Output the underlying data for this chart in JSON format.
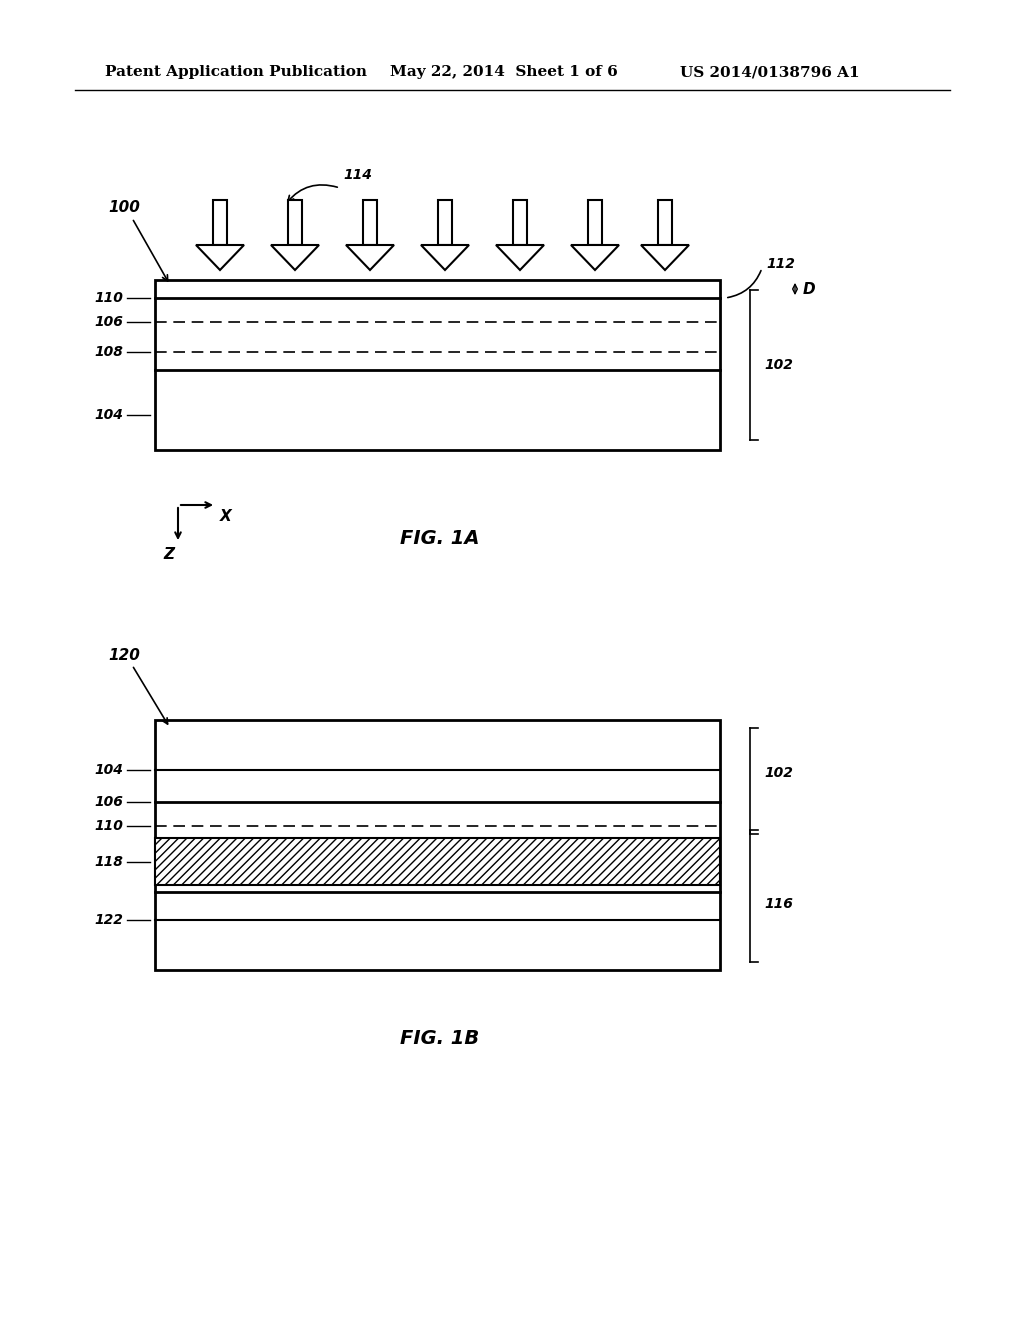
{
  "bg_color": "#ffffff",
  "header_text1": "Patent Application Publication",
  "header_text2": "May 22, 2014  Sheet 1 of 6",
  "header_text3": "US 2014/0138796 A1",
  "fig1a_label": "FIG. 1A",
  "fig1b_label": "FIG. 1B",
  "fig1a_ref": "100",
  "fig1b_ref": "120",
  "arrow_label": "114",
  "label_112": "112",
  "label_102_1A": "102",
  "label_110_1A": "110",
  "label_106_1A": "106",
  "label_108": "108",
  "label_104_1A": "104",
  "label_D": "D",
  "label_104_1B": "104",
  "label_106_1B": "106",
  "label_110_1B": "110",
  "label_118": "118",
  "label_122": "122",
  "label_102_1B": "102",
  "label_116": "116"
}
